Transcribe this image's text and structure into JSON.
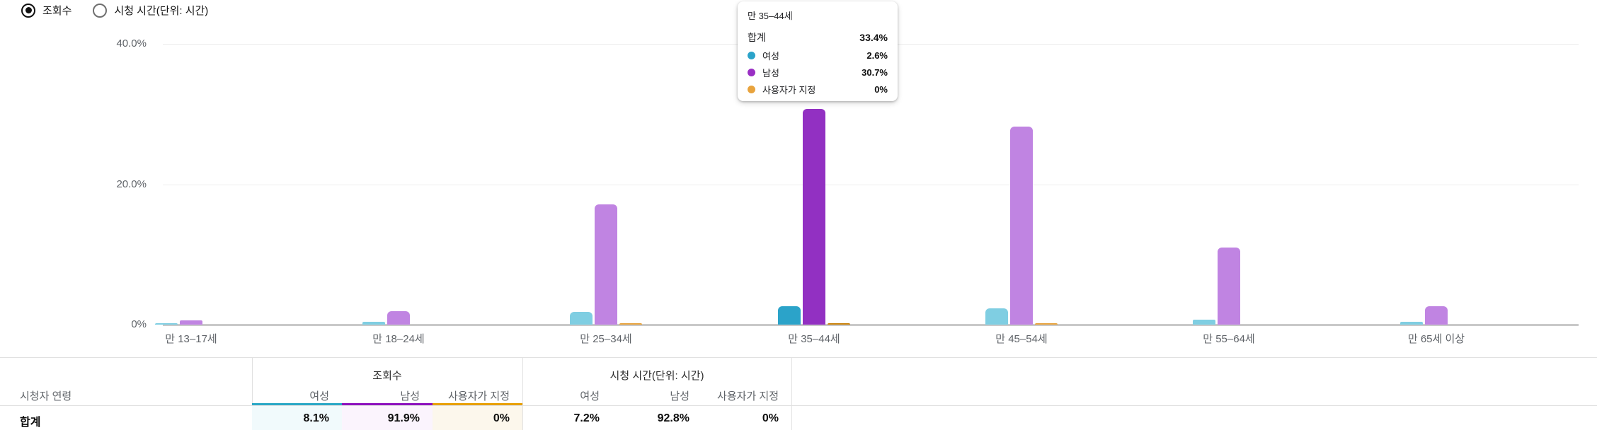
{
  "controls": {
    "radio_options": [
      {
        "label": "조회수",
        "selected": true
      },
      {
        "label": "시청 시간(단위: 시간)",
        "selected": false
      }
    ]
  },
  "chart_data": {
    "type": "bar",
    "title": "",
    "xlabel": "",
    "ylabel": "",
    "ylim": [
      0,
      40
    ],
    "grid": true,
    "legend_position": "none",
    "y_ticks": [
      {
        "label": "40.0%",
        "value": 40
      },
      {
        "label": "20.0%",
        "value": 20
      },
      {
        "label": "0%",
        "value": 0
      }
    ],
    "categories": [
      "만 13–17세",
      "만 18–24세",
      "만 25–34세",
      "만 35–44세",
      "만 45–54세",
      "만 55–64세",
      "만 65세 이상"
    ],
    "series": [
      {
        "name": "여성",
        "color_normal": "#7FCEE2",
        "color_hover": "#2BA3C9",
        "values": [
          0.1,
          0.4,
          1.8,
          2.6,
          2.3,
          0.7,
          0.4
        ]
      },
      {
        "name": "남성",
        "color_normal": "#C084E2",
        "color_hover": "#9230C2",
        "values": [
          0.6,
          1.9,
          17.1,
          30.7,
          28.2,
          11.0,
          2.6
        ]
      },
      {
        "name": "사용자가 지정",
        "color_normal": "#E8A33D",
        "color_hover": "#C9810A",
        "values": [
          0,
          0,
          0,
          0,
          0,
          0,
          0
        ]
      }
    ],
    "zero_mark_categories": [
      2,
      3,
      4
    ],
    "hover_category_index": 3
  },
  "tooltip": {
    "title": "만 35–44세",
    "total_label": "합계",
    "total_value": "33.4%",
    "rows": [
      {
        "label": "여성",
        "value": "2.6%",
        "color": "#2BA3C9"
      },
      {
        "label": "남성",
        "value": "30.7%",
        "color": "#9A2FC4"
      },
      {
        "label": "사용자가 지정",
        "value": "0%",
        "color": "#E8A33D"
      }
    ]
  },
  "table": {
    "row_header": "시청자 연령",
    "groups": [
      {
        "title": "조회수",
        "columns": [
          "여성",
          "남성",
          "사용자가 지정"
        ]
      },
      {
        "title": "시청 시간(단위: 시간)",
        "columns": [
          "여성",
          "남성",
          "사용자가 지정"
        ]
      }
    ],
    "underline_colors": [
      "#2BA8C6",
      "#8E12BE",
      "#E8A000"
    ],
    "cell_tints": [
      "#f1fafc",
      "#fbf4fd",
      "#fcf7ec"
    ],
    "total_row": {
      "label": "합계",
      "views": [
        "8.1%",
        "91.9%",
        "0%"
      ],
      "watch_time": [
        "7.2%",
        "92.8%",
        "0%"
      ]
    }
  }
}
